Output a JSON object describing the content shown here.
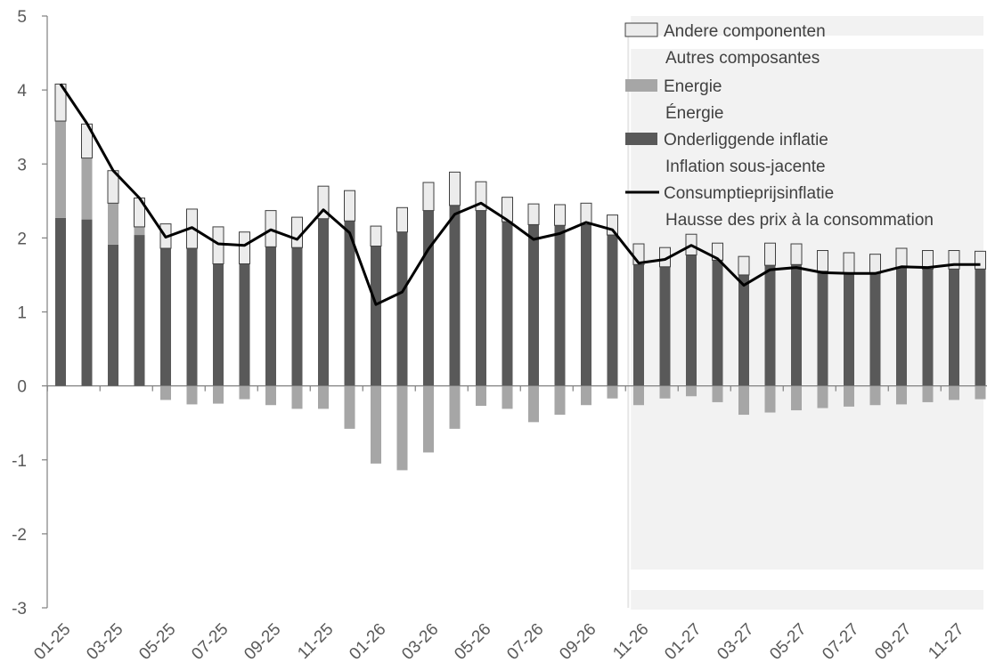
{
  "chart_data": {
    "type": "bar",
    "title": "",
    "xlabel": "",
    "ylabel": "",
    "ylim": [
      -3,
      5
    ],
    "yticks": [
      5,
      4,
      3,
      2,
      1,
      0,
      -1,
      -2,
      -3
    ],
    "categories": [
      "01-25",
      "02-25",
      "03-25",
      "04-25",
      "05-25",
      "06-25",
      "07-25",
      "08-25",
      "09-25",
      "10-25",
      "11-25",
      "12-25",
      "01-26",
      "02-26",
      "03-26",
      "04-26",
      "05-26",
      "06-26",
      "07-26",
      "08-26",
      "09-26",
      "10-26",
      "11-26",
      "12-26",
      "01-27",
      "02-27",
      "03-27",
      "04-27",
      "05-27",
      "06-27",
      "07-27",
      "08-27",
      "09-27",
      "10-27",
      "11-27",
      "12-27"
    ],
    "xtick_labels": [
      "01-25",
      "03-25",
      "05-25",
      "07-25",
      "09-25",
      "11-25",
      "01-26",
      "03-26",
      "05-26",
      "07-26",
      "09-26",
      "11-26",
      "01-27",
      "03-27",
      "05-27",
      "07-27",
      "09-27",
      "11-27"
    ],
    "series": [
      {
        "name": "Onderliggende inflatie",
        "name_fr": "Inflation sous-jacente",
        "kind": "bar",
        "color": "#595959",
        "values": [
          2.27,
          2.25,
          1.91,
          2.04,
          1.86,
          1.86,
          1.65,
          1.65,
          1.88,
          1.87,
          2.26,
          2.23,
          1.89,
          2.08,
          2.37,
          2.44,
          2.37,
          2.22,
          2.18,
          2.17,
          2.18,
          2.04,
          1.64,
          1.61,
          1.77,
          1.7,
          1.5,
          1.63,
          1.64,
          1.55,
          1.53,
          1.52,
          1.6,
          1.58,
          1.58,
          1.58
        ]
      },
      {
        "name": "Energie",
        "name_fr": "Énergie",
        "kind": "bar",
        "color": "#a6a6a6",
        "values": [
          1.31,
          0.83,
          0.56,
          0.11,
          -0.19,
          -0.25,
          -0.24,
          -0.18,
          -0.26,
          -0.31,
          -0.31,
          -0.58,
          -1.05,
          -1.14,
          -0.9,
          -0.58,
          -0.27,
          -0.31,
          -0.49,
          -0.39,
          -0.26,
          -0.17,
          -0.26,
          -0.17,
          -0.14,
          -0.22,
          -0.39,
          -0.36,
          -0.33,
          -0.3,
          -0.28,
          -0.26,
          -0.25,
          -0.22,
          -0.19,
          -0.18
        ]
      },
      {
        "name": "Andere componenten",
        "name_fr": "Autres composantes",
        "kind": "bar",
        "color": "#ececec",
        "values": [
          0.5,
          0.46,
          0.44,
          0.39,
          0.33,
          0.53,
          0.5,
          0.43,
          0.49,
          0.41,
          0.44,
          0.41,
          0.27,
          0.33,
          0.38,
          0.45,
          0.39,
          0.33,
          0.28,
          0.28,
          0.29,
          0.27,
          0.28,
          0.26,
          0.28,
          0.23,
          0.25,
          0.3,
          0.28,
          0.28,
          0.27,
          0.26,
          0.26,
          0.25,
          0.25,
          0.24
        ]
      },
      {
        "name": "Consumptieprijsinflatie",
        "name_fr": "Hausse des prix à la consommation",
        "kind": "line",
        "color": "#000000",
        "values": [
          4.08,
          3.55,
          2.91,
          2.54,
          2.01,
          2.14,
          1.92,
          1.9,
          2.11,
          1.98,
          2.38,
          2.07,
          1.1,
          1.27,
          1.85,
          2.32,
          2.47,
          2.24,
          1.98,
          2.06,
          2.21,
          2.11,
          1.66,
          1.71,
          1.9,
          1.72,
          1.36,
          1.57,
          1.6,
          1.53,
          1.52,
          1.52,
          1.61,
          1.6,
          1.64,
          1.64
        ]
      }
    ],
    "forecast_shading_from": "11-26",
    "grid": false,
    "legend_position": "top-right"
  }
}
